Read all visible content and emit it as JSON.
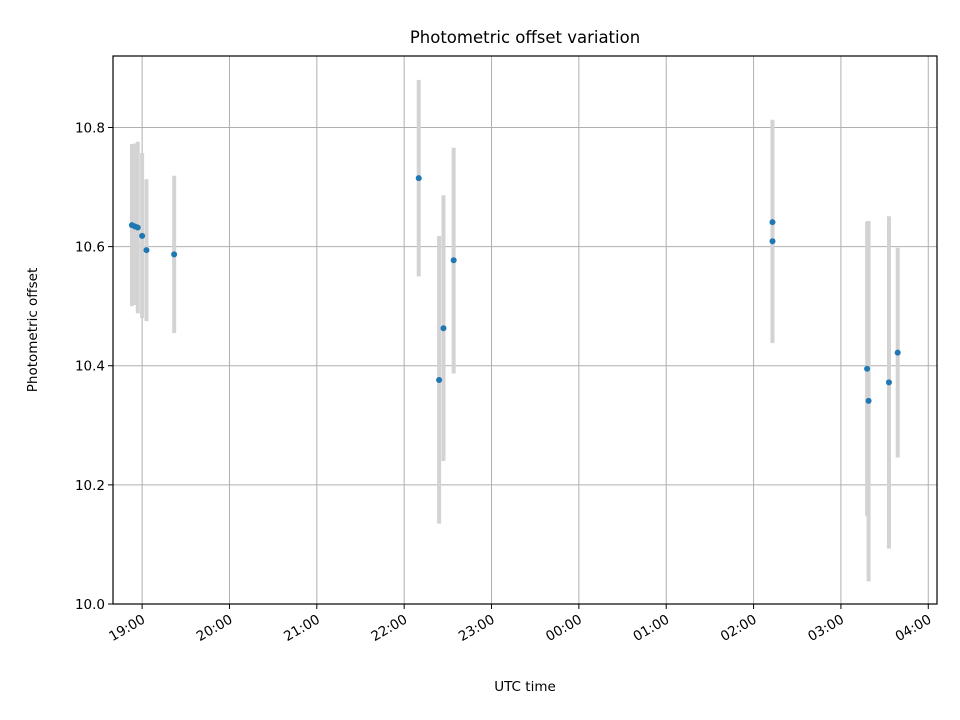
{
  "chart_data": {
    "type": "scatter",
    "title": "Photometric offset variation",
    "xlabel": "UTC time",
    "ylabel": "Photometric offset",
    "x_axis_type": "time",
    "xlim": [
      "18:40",
      "04:06"
    ],
    "ylim": [
      10.0,
      10.92
    ],
    "x_ticks": [
      "19:00",
      "20:00",
      "21:00",
      "22:00",
      "23:00",
      "00:00",
      "01:00",
      "02:00",
      "03:00",
      "04:00"
    ],
    "y_ticks": [
      10.0,
      10.2,
      10.4,
      10.6,
      10.8
    ],
    "y_tick_labels": [
      "10.0",
      "10.2",
      "10.4",
      "10.6",
      "10.8"
    ],
    "grid": true,
    "legend": "none",
    "marker_color": "#1f77b4",
    "errorbar_color": "#d3d3d3",
    "points": [
      {
        "x": "18:53",
        "y": 10.636,
        "err_low": 10.5,
        "err_high": 10.772
      },
      {
        "x": "18:55",
        "y": 10.634,
        "err_low": 10.502,
        "err_high": 10.773
      },
      {
        "x": "18:57",
        "y": 10.632,
        "err_low": 10.488,
        "err_high": 10.776
      },
      {
        "x": "19:00",
        "y": 10.618,
        "err_low": 10.48,
        "err_high": 10.757
      },
      {
        "x": "19:03",
        "y": 10.594,
        "err_low": 10.475,
        "err_high": 10.713
      },
      {
        "x": "19:22",
        "y": 10.587,
        "err_low": 10.455,
        "err_high": 10.719
      },
      {
        "x": "22:10",
        "y": 10.715,
        "err_low": 10.55,
        "err_high": 10.88
      },
      {
        "x": "22:24",
        "y": 10.376,
        "err_low": 10.135,
        "err_high": 10.618
      },
      {
        "x": "22:27",
        "y": 10.463,
        "err_low": 10.24,
        "err_high": 10.686
      },
      {
        "x": "22:34",
        "y": 10.577,
        "err_low": 10.387,
        "err_high": 10.766
      },
      {
        "x": "02:13",
        "y": 10.641,
        "err_low": 10.468,
        "err_high": 10.813
      },
      {
        "x": "02:13",
        "y": 10.609,
        "err_low": 10.438,
        "err_high": 10.78
      },
      {
        "x": "03:18",
        "y": 10.395,
        "err_low": 10.148,
        "err_high": 10.642
      },
      {
        "x": "03:19",
        "y": 10.341,
        "err_low": 10.038,
        "err_high": 10.643
      },
      {
        "x": "03:33",
        "y": 10.372,
        "err_low": 10.093,
        "err_high": 10.651
      },
      {
        "x": "03:39",
        "y": 10.422,
        "err_low": 10.246,
        "err_high": 10.598
      }
    ]
  }
}
